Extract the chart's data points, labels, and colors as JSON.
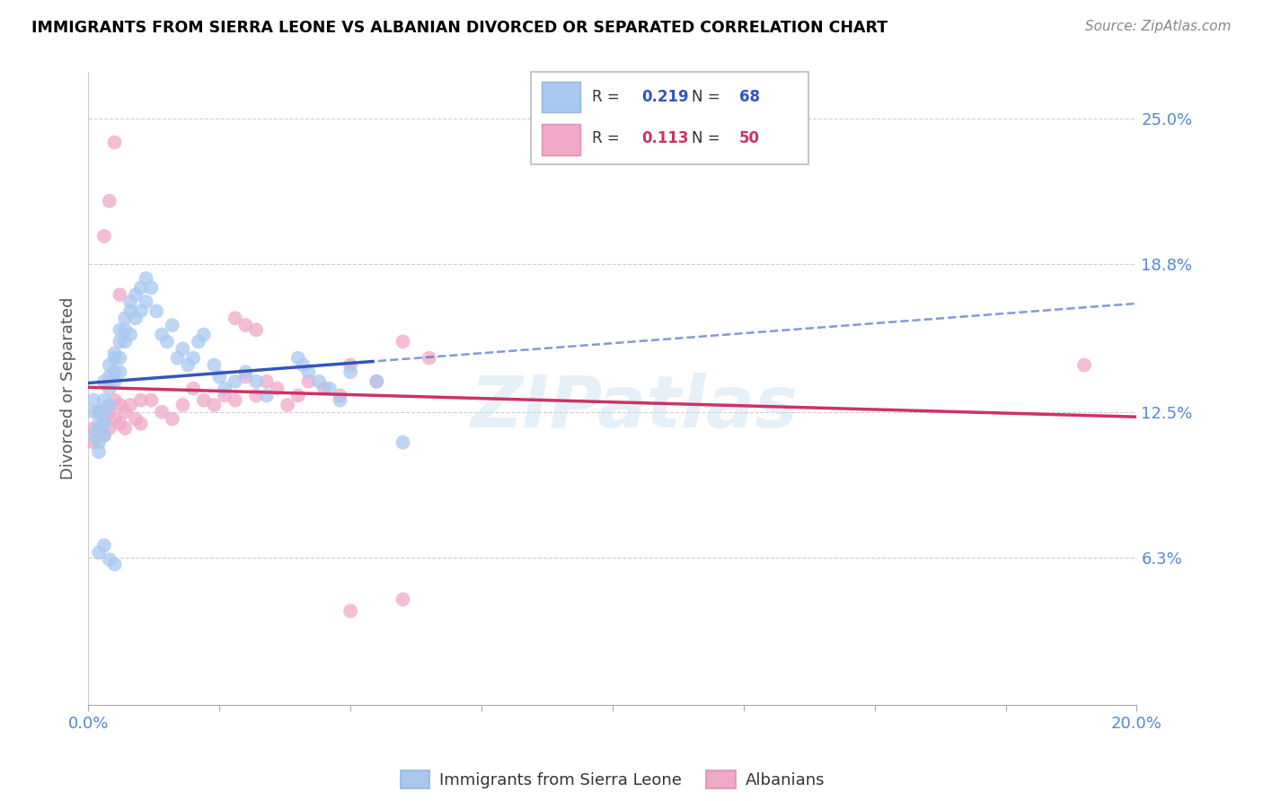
{
  "title": "IMMIGRANTS FROM SIERRA LEONE VS ALBANIAN DIVORCED OR SEPARATED CORRELATION CHART",
  "source": "Source: ZipAtlas.com",
  "xlim": [
    0.0,
    0.2
  ],
  "ylim": [
    0.0,
    0.27
  ],
  "ylabel": "Divorced or Separated",
  "legend_label1": "Immigrants from Sierra Leone",
  "legend_label2": "Albanians",
  "r1": 0.219,
  "n1": 68,
  "r2": 0.113,
  "n2": 50,
  "color1": "#a8c8f0",
  "color2": "#f0a8c8",
  "line1_color": "#3355bb",
  "line2_color": "#cc3366",
  "watermark": "ZIPatlas",
  "blue_scatter_x": [
    0.001,
    0.001,
    0.001,
    0.002,
    0.002,
    0.002,
    0.002,
    0.002,
    0.003,
    0.003,
    0.003,
    0.003,
    0.003,
    0.004,
    0.004,
    0.004,
    0.004,
    0.005,
    0.005,
    0.005,
    0.005,
    0.006,
    0.006,
    0.006,
    0.006,
    0.007,
    0.007,
    0.007,
    0.008,
    0.008,
    0.008,
    0.009,
    0.009,
    0.01,
    0.01,
    0.011,
    0.011,
    0.012,
    0.013,
    0.014,
    0.015,
    0.016,
    0.017,
    0.018,
    0.019,
    0.02,
    0.021,
    0.022,
    0.024,
    0.025,
    0.026,
    0.028,
    0.03,
    0.032,
    0.034,
    0.04,
    0.041,
    0.042,
    0.044,
    0.046,
    0.048,
    0.05,
    0.055,
    0.06,
    0.002,
    0.003,
    0.004,
    0.005
  ],
  "blue_scatter_y": [
    0.125,
    0.13,
    0.115,
    0.12,
    0.125,
    0.118,
    0.112,
    0.108,
    0.13,
    0.138,
    0.125,
    0.12,
    0.115,
    0.14,
    0.145,
    0.135,
    0.128,
    0.15,
    0.148,
    0.142,
    0.138,
    0.16,
    0.155,
    0.148,
    0.142,
    0.165,
    0.16,
    0.155,
    0.172,
    0.168,
    0.158,
    0.175,
    0.165,
    0.178,
    0.168,
    0.182,
    0.172,
    0.178,
    0.168,
    0.158,
    0.155,
    0.162,
    0.148,
    0.152,
    0.145,
    0.148,
    0.155,
    0.158,
    0.145,
    0.14,
    0.135,
    0.138,
    0.142,
    0.138,
    0.132,
    0.148,
    0.145,
    0.142,
    0.138,
    0.135,
    0.13,
    0.142,
    0.138,
    0.112,
    0.065,
    0.068,
    0.062,
    0.06
  ],
  "pink_scatter_x": [
    0.001,
    0.001,
    0.002,
    0.002,
    0.003,
    0.003,
    0.004,
    0.004,
    0.005,
    0.005,
    0.006,
    0.006,
    0.007,
    0.007,
    0.008,
    0.009,
    0.01,
    0.01,
    0.012,
    0.014,
    0.016,
    0.018,
    0.02,
    0.022,
    0.024,
    0.026,
    0.028,
    0.03,
    0.032,
    0.034,
    0.036,
    0.038,
    0.04,
    0.042,
    0.045,
    0.048,
    0.05,
    0.055,
    0.06,
    0.065,
    0.003,
    0.004,
    0.005,
    0.006,
    0.028,
    0.03,
    0.032,
    0.19,
    0.05,
    0.06
  ],
  "pink_scatter_y": [
    0.118,
    0.112,
    0.125,
    0.115,
    0.122,
    0.115,
    0.125,
    0.118,
    0.13,
    0.122,
    0.128,
    0.12,
    0.125,
    0.118,
    0.128,
    0.122,
    0.13,
    0.12,
    0.13,
    0.125,
    0.122,
    0.128,
    0.135,
    0.13,
    0.128,
    0.132,
    0.13,
    0.14,
    0.132,
    0.138,
    0.135,
    0.128,
    0.132,
    0.138,
    0.135,
    0.132,
    0.145,
    0.138,
    0.155,
    0.148,
    0.2,
    0.215,
    0.24,
    0.175,
    0.165,
    0.162,
    0.16,
    0.145,
    0.04,
    0.045
  ]
}
